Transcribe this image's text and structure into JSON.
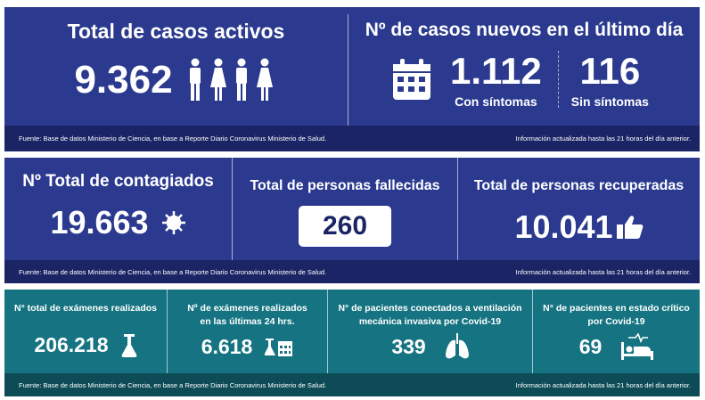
{
  "footer": {
    "source": "Fuente: Base de datos Ministerio de Ciencia, en base a Reporte Diario Coronavirus Ministerio de Salud.",
    "updated": "Información actualizada hasta las 21 horas  del día anterior."
  },
  "active": {
    "title": "Total de casos activos",
    "value": "9.362",
    "icon": "people-icon"
  },
  "new_cases": {
    "title": "Nº de casos nuevos en el último día",
    "with_symptoms": "1.112",
    "with_label": "Con síntomas",
    "without_symptoms": "116",
    "without_label": "Sin síntomas",
    "icon": "calendar-icon"
  },
  "total_infected": {
    "title": "Nº Total de contagiados",
    "value": "19.663",
    "icon": "virus-icon"
  },
  "deaths": {
    "title": "Total de personas fallecidas",
    "value": "260"
  },
  "recovered": {
    "title": "Total de personas recuperadas",
    "value": "10.041",
    "icon": "thumbs-up-icon"
  },
  "exams_total": {
    "title": "N° total de exámenes realizados",
    "value": "206.218",
    "icon": "flask-icon"
  },
  "exams_24h": {
    "title1": "Nº de exámenes realizados",
    "title2": "en las últimas 24 hrs.",
    "value": "6.618",
    "icon": "flask-calendar-icon"
  },
  "ventilated": {
    "title1": "N° de pacientes conectados a ventilación",
    "title2": "mecánica invasiva por Covid-19",
    "value": "339",
    "icon": "lungs-icon"
  },
  "critical": {
    "title1": "N° de pacientes en estado crítico",
    "title2": "por Covid-19",
    "value": "69",
    "icon": "hospital-bed-icon"
  },
  "colors": {
    "blue": "#2b3a8f",
    "blue_footer": "#1b2566",
    "teal": "#167482",
    "teal_footer": "#0d4c57"
  }
}
